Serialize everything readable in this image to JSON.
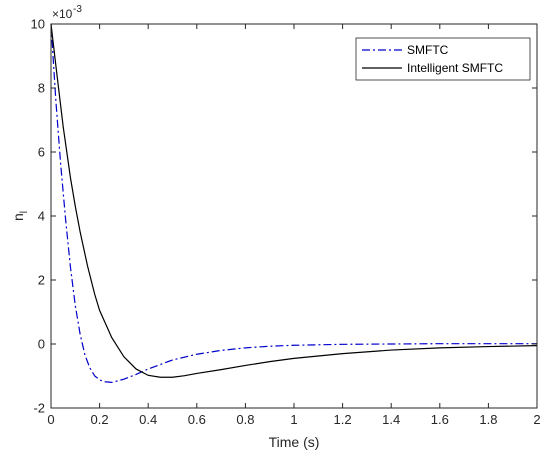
{
  "chart_data": {
    "type": "line",
    "xlabel": "Time (s)",
    "ylabel_main": "n",
    "ylabel_sub": "l",
    "multiplier_base": "×10",
    "multiplier_exp": "-3",
    "xlim": [
      0,
      2
    ],
    "ylim": [
      -2,
      10
    ],
    "xticks": [
      0,
      0.2,
      0.4,
      0.6,
      0.8,
      1,
      1.2,
      1.4,
      1.6,
      1.8,
      2
    ],
    "xtick_labels": [
      "0",
      "0.2",
      "0.4",
      "0.6",
      "0.8",
      "1",
      "1.2",
      "1.4",
      "1.6",
      "1.8",
      "2"
    ],
    "yticks": [
      -2,
      0,
      2,
      4,
      6,
      8,
      10
    ],
    "ytick_labels": [
      "-2",
      "0",
      "2",
      "4",
      "6",
      "8",
      "10"
    ],
    "grid": false,
    "legend_position": "top-right",
    "series": [
      {
        "name": "SMFTC",
        "color": "#0000cc",
        "style": "dashdot",
        "x": [
          0,
          0.02,
          0.04,
          0.06,
          0.08,
          0.1,
          0.12,
          0.14,
          0.16,
          0.18,
          0.2,
          0.22,
          0.25,
          0.3,
          0.35,
          0.4,
          0.5,
          0.6,
          0.7,
          0.8,
          0.9,
          1.0,
          1.2,
          1.4,
          1.6,
          1.8,
          2.0
        ],
        "y": [
          10,
          7.6,
          5.6,
          3.9,
          2.4,
          1.2,
          0.3,
          -0.35,
          -0.75,
          -1.0,
          -1.12,
          -1.18,
          -1.2,
          -1.1,
          -0.95,
          -0.78,
          -0.5,
          -0.32,
          -0.2,
          -0.12,
          -0.07,
          -0.04,
          -0.01,
          0.0,
          0.01,
          0.01,
          0.01
        ]
      },
      {
        "name": "Intelligent SMFTC",
        "color": "#000000",
        "style": "solid",
        "x": [
          0,
          0.02,
          0.05,
          0.08,
          0.1,
          0.12,
          0.15,
          0.18,
          0.2,
          0.25,
          0.3,
          0.35,
          0.4,
          0.45,
          0.5,
          0.55,
          0.6,
          0.7,
          0.8,
          0.9,
          1.0,
          1.2,
          1.4,
          1.6,
          1.8,
          2.0
        ],
        "y": [
          10,
          8.7,
          6.8,
          5.2,
          4.3,
          3.5,
          2.45,
          1.55,
          1.05,
          0.2,
          -0.4,
          -0.78,
          -0.98,
          -1.04,
          -1.04,
          -0.99,
          -0.92,
          -0.8,
          -0.67,
          -0.55,
          -0.45,
          -0.3,
          -0.19,
          -0.12,
          -0.08,
          -0.05
        ]
      }
    ]
  }
}
